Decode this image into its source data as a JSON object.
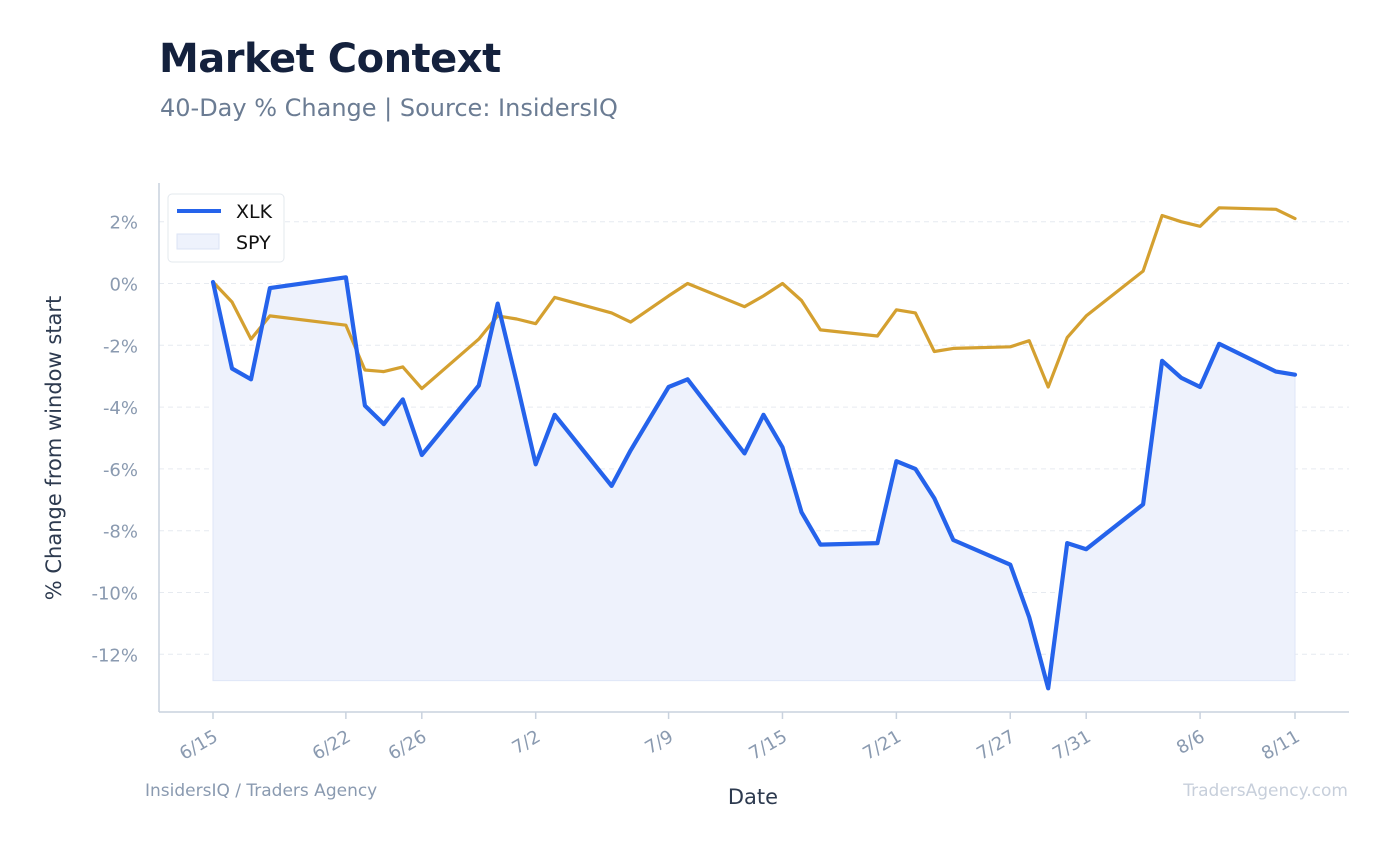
{
  "header": {
    "title": "Market Context",
    "subtitle": "40-Day % Change | Source: InsidersIQ"
  },
  "footer": {
    "left": "InsidersIQ / Traders Agency",
    "right": "TradersAgency.com"
  },
  "colors": {
    "xlk_line": "#2563eb",
    "xlk_fill": "#eef2fc",
    "spy_line": "#d4a030",
    "grid": "#e6eaf0",
    "axis": "#c9d2de"
  },
  "chart_data": {
    "type": "line",
    "title": "Market Context",
    "subtitle": "40-Day % Change | Source: InsidersIQ",
    "xlabel": "Date",
    "ylabel": "% Change from window start",
    "ylim": [
      -13.9,
      3.3
    ],
    "yticks": [
      2,
      0,
      -2,
      -4,
      -6,
      -8,
      -10,
      -12
    ],
    "ytick_labels": [
      "2%",
      "0%",
      "-2%",
      "-4%",
      "-6%",
      "-8%",
      "-10%",
      "-12%"
    ],
    "xticks": [
      {
        "date": "6/15",
        "label": "6/15"
      },
      {
        "date": "6/22",
        "label": "6/22"
      },
      {
        "date": "6/26",
        "label": "6/26"
      },
      {
        "date": "7/2",
        "label": "7/2"
      },
      {
        "date": "7/9",
        "label": "7/9"
      },
      {
        "date": "7/15",
        "label": "7/15"
      },
      {
        "date": "7/21",
        "label": "7/21"
      },
      {
        "date": "7/27",
        "label": "7/27"
      },
      {
        "date": "7/31",
        "label": "7/31"
      },
      {
        "date": "8/6",
        "label": "8/6"
      },
      {
        "date": "8/11",
        "label": "8/11"
      }
    ],
    "grid": true,
    "legend_position": "top-left",
    "x": [
      "6/15",
      "6/16",
      "6/17",
      "6/18",
      "6/22",
      "6/23",
      "6/24",
      "6/25",
      "6/26",
      "6/29",
      "6/30",
      "7/1",
      "7/2",
      "7/3",
      "7/6",
      "7/7",
      "7/9",
      "7/10",
      "7/13",
      "7/14",
      "7/15",
      "7/16",
      "7/17",
      "7/20",
      "7/21",
      "7/22",
      "7/23",
      "7/24",
      "7/27",
      "7/28",
      "7/29",
      "7/30",
      "7/31",
      "8/3",
      "8/4",
      "8/5",
      "8/6",
      "8/7",
      "8/10",
      "8/11"
    ],
    "series": [
      {
        "name": "XLK",
        "legend_style": "line",
        "color": "#2563eb",
        "values": [
          0.05,
          -2.75,
          -3.1,
          -0.15,
          0.2,
          -3.95,
          -4.55,
          -3.75,
          -5.55,
          -3.3,
          -0.65,
          -3.2,
          -5.85,
          -4.25,
          -6.55,
          -5.4,
          -3.35,
          -3.1,
          -5.5,
          -4.25,
          -5.3,
          -7.4,
          -8.45,
          -8.4,
          -5.75,
          -6.0,
          -6.95,
          -8.3,
          -9.1,
          -10.8,
          -13.1,
          -8.4,
          -8.6,
          -7.15,
          -2.5,
          -3.05,
          -3.35,
          -1.95,
          -2.85,
          -2.95
        ]
      },
      {
        "name": "SPY",
        "legend_style": "area",
        "color": "#d4a030",
        "values": [
          0.05,
          -0.6,
          -1.8,
          -1.05,
          -1.35,
          -2.8,
          -2.85,
          -2.7,
          -3.4,
          -1.8,
          -1.05,
          -1.15,
          -1.3,
          -0.45,
          -0.95,
          -1.25,
          -0.4,
          0.0,
          -0.75,
          -0.4,
          0.0,
          -0.55,
          -1.5,
          -1.7,
          -0.85,
          -0.95,
          -2.2,
          -2.1,
          -2.05,
          -1.85,
          -3.35,
          -1.75,
          -1.05,
          0.4,
          2.2,
          2.0,
          1.85,
          2.45,
          2.4,
          2.1
        ]
      }
    ]
  }
}
